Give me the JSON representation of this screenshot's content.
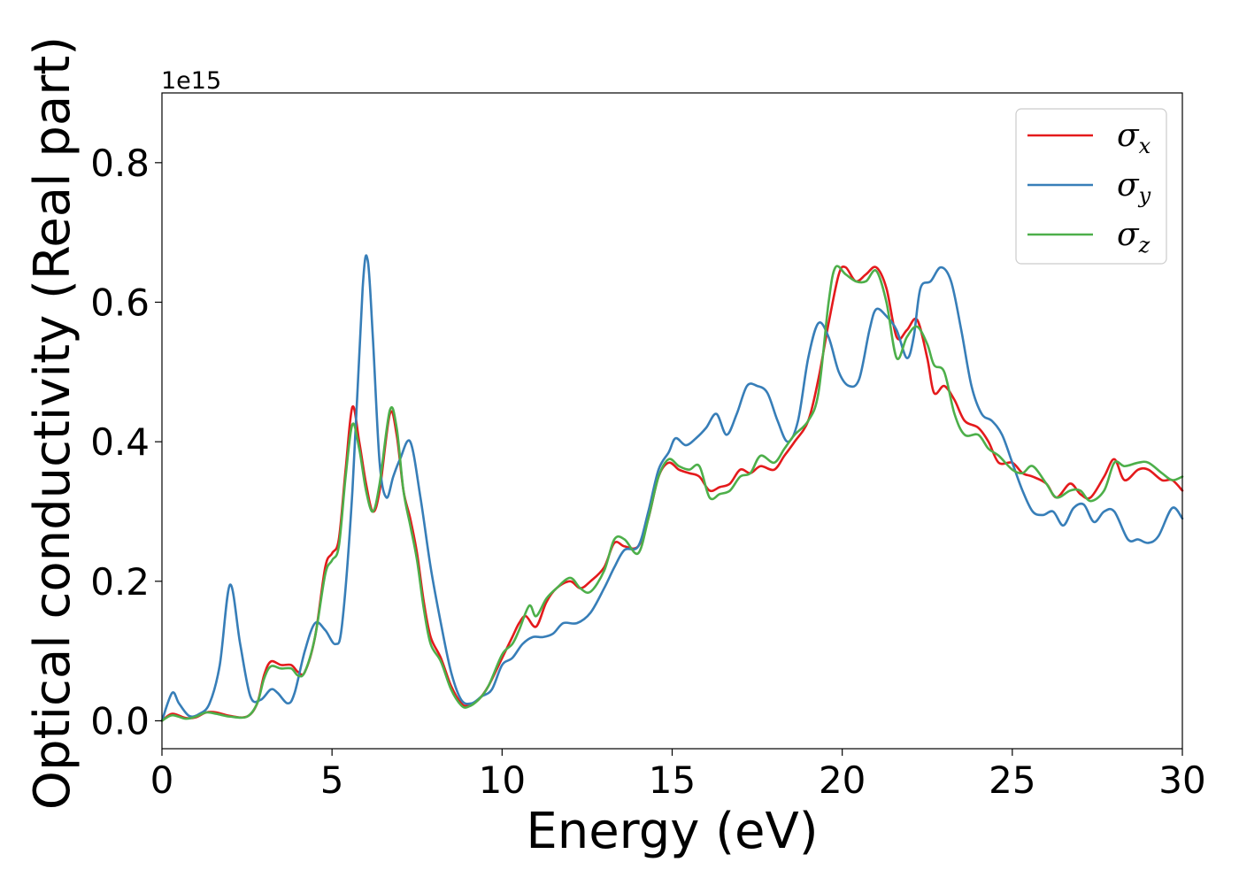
{
  "chart_data": {
    "type": "line",
    "xlabel": "Energy (eV)",
    "ylabel": "Optical conductivity (Real part)",
    "offset_text": "1e15",
    "xlim": [
      0,
      30
    ],
    "ylim": [
      -0.04,
      0.9
    ],
    "xticks": [
      0,
      5,
      10,
      15,
      20,
      25,
      30
    ],
    "xtick_labels": [
      "0",
      "5",
      "10",
      "15",
      "20",
      "25",
      "30"
    ],
    "yticks": [
      0.0,
      0.2,
      0.4,
      0.6,
      0.8
    ],
    "ytick_labels": [
      "0.0",
      "0.2",
      "0.4",
      "0.6",
      "0.8"
    ],
    "grid": false,
    "legend_position": "top-right",
    "series": [
      {
        "name": "σx",
        "legend_symbol": "σ",
        "legend_sub": "x",
        "color": "#e41a1c",
        "points": [
          [
            0,
            0.0
          ],
          [
            0.3,
            0.01
          ],
          [
            0.7,
            0.004
          ],
          [
            1.0,
            0.005
          ],
          [
            1.3,
            0.012
          ],
          [
            1.6,
            0.012
          ],
          [
            2.0,
            0.007
          ],
          [
            2.5,
            0.006
          ],
          [
            2.8,
            0.025
          ],
          [
            3.0,
            0.065
          ],
          [
            3.2,
            0.085
          ],
          [
            3.5,
            0.08
          ],
          [
            3.8,
            0.08
          ],
          [
            4.0,
            0.07
          ],
          [
            4.2,
            0.07
          ],
          [
            4.5,
            0.12
          ],
          [
            4.8,
            0.22
          ],
          [
            5.0,
            0.24
          ],
          [
            5.2,
            0.26
          ],
          [
            5.4,
            0.36
          ],
          [
            5.6,
            0.45
          ],
          [
            5.8,
            0.4
          ],
          [
            6.0,
            0.34
          ],
          [
            6.2,
            0.3
          ],
          [
            6.4,
            0.33
          ],
          [
            6.7,
            0.44
          ],
          [
            6.9,
            0.41
          ],
          [
            7.1,
            0.33
          ],
          [
            7.3,
            0.29
          ],
          [
            7.5,
            0.24
          ],
          [
            7.7,
            0.17
          ],
          [
            7.9,
            0.12
          ],
          [
            8.2,
            0.09
          ],
          [
            8.5,
            0.05
          ],
          [
            8.8,
            0.025
          ],
          [
            9.0,
            0.022
          ],
          [
            9.3,
            0.03
          ],
          [
            9.6,
            0.05
          ],
          [
            10.0,
            0.09
          ],
          [
            10.3,
            0.12
          ],
          [
            10.5,
            0.14
          ],
          [
            10.7,
            0.15
          ],
          [
            11.0,
            0.135
          ],
          [
            11.3,
            0.17
          ],
          [
            11.6,
            0.19
          ],
          [
            12.0,
            0.2
          ],
          [
            12.3,
            0.19
          ],
          [
            12.6,
            0.2
          ],
          [
            13.0,
            0.22
          ],
          [
            13.3,
            0.255
          ],
          [
            13.6,
            0.25
          ],
          [
            14.0,
            0.25
          ],
          [
            14.3,
            0.29
          ],
          [
            14.6,
            0.35
          ],
          [
            14.9,
            0.37
          ],
          [
            15.2,
            0.36
          ],
          [
            15.5,
            0.355
          ],
          [
            15.8,
            0.35
          ],
          [
            16.1,
            0.33
          ],
          [
            16.4,
            0.335
          ],
          [
            16.7,
            0.34
          ],
          [
            17.0,
            0.36
          ],
          [
            17.3,
            0.355
          ],
          [
            17.6,
            0.365
          ],
          [
            18.0,
            0.36
          ],
          [
            18.3,
            0.38
          ],
          [
            18.6,
            0.4
          ],
          [
            19.0,
            0.43
          ],
          [
            19.3,
            0.49
          ],
          [
            19.6,
            0.57
          ],
          [
            19.9,
            0.64
          ],
          [
            20.1,
            0.65
          ],
          [
            20.4,
            0.63
          ],
          [
            20.7,
            0.64
          ],
          [
            21.0,
            0.65
          ],
          [
            21.3,
            0.62
          ],
          [
            21.6,
            0.55
          ],
          [
            21.9,
            0.56
          ],
          [
            22.2,
            0.575
          ],
          [
            22.5,
            0.52
          ],
          [
            22.7,
            0.47
          ],
          [
            23.0,
            0.48
          ],
          [
            23.3,
            0.46
          ],
          [
            23.6,
            0.43
          ],
          [
            24.0,
            0.42
          ],
          [
            24.3,
            0.4
          ],
          [
            24.6,
            0.37
          ],
          [
            25.0,
            0.37
          ],
          [
            25.3,
            0.355
          ],
          [
            25.6,
            0.35
          ],
          [
            26.0,
            0.34
          ],
          [
            26.3,
            0.32
          ],
          [
            26.7,
            0.34
          ],
          [
            27.0,
            0.325
          ],
          [
            27.3,
            0.32
          ],
          [
            27.7,
            0.35
          ],
          [
            28.0,
            0.375
          ],
          [
            28.3,
            0.345
          ],
          [
            28.7,
            0.36
          ],
          [
            29.0,
            0.36
          ],
          [
            29.4,
            0.345
          ],
          [
            29.7,
            0.345
          ],
          [
            30.0,
            0.33
          ]
        ]
      },
      {
        "name": "σy",
        "legend_symbol": "σ",
        "legend_sub": "y",
        "color": "#377eb8",
        "points": [
          [
            0,
            0.0
          ],
          [
            0.3,
            0.04
          ],
          [
            0.5,
            0.025
          ],
          [
            0.8,
            0.007
          ],
          [
            1.1,
            0.01
          ],
          [
            1.4,
            0.025
          ],
          [
            1.7,
            0.08
          ],
          [
            2.0,
            0.195
          ],
          [
            2.3,
            0.11
          ],
          [
            2.6,
            0.035
          ],
          [
            2.9,
            0.03
          ],
          [
            3.2,
            0.045
          ],
          [
            3.4,
            0.04
          ],
          [
            3.7,
            0.025
          ],
          [
            3.9,
            0.04
          ],
          [
            4.2,
            0.1
          ],
          [
            4.5,
            0.14
          ],
          [
            4.8,
            0.13
          ],
          [
            5.1,
            0.11
          ],
          [
            5.3,
            0.14
          ],
          [
            5.6,
            0.33
          ],
          [
            5.9,
            0.62
          ],
          [
            6.05,
            0.66
          ],
          [
            6.2,
            0.55
          ],
          [
            6.4,
            0.37
          ],
          [
            6.6,
            0.32
          ],
          [
            6.8,
            0.35
          ],
          [
            7.0,
            0.375
          ],
          [
            7.3,
            0.4
          ],
          [
            7.6,
            0.32
          ],
          [
            7.9,
            0.22
          ],
          [
            8.2,
            0.14
          ],
          [
            8.5,
            0.07
          ],
          [
            8.8,
            0.03
          ],
          [
            9.1,
            0.025
          ],
          [
            9.4,
            0.035
          ],
          [
            9.7,
            0.045
          ],
          [
            10.0,
            0.08
          ],
          [
            10.3,
            0.09
          ],
          [
            10.6,
            0.11
          ],
          [
            10.9,
            0.12
          ],
          [
            11.2,
            0.12
          ],
          [
            11.5,
            0.125
          ],
          [
            11.8,
            0.14
          ],
          [
            12.2,
            0.14
          ],
          [
            12.6,
            0.155
          ],
          [
            13.0,
            0.19
          ],
          [
            13.3,
            0.22
          ],
          [
            13.6,
            0.245
          ],
          [
            14.0,
            0.25
          ],
          [
            14.3,
            0.3
          ],
          [
            14.6,
            0.36
          ],
          [
            14.9,
            0.385
          ],
          [
            15.1,
            0.405
          ],
          [
            15.4,
            0.395
          ],
          [
            15.7,
            0.405
          ],
          [
            16.0,
            0.42
          ],
          [
            16.3,
            0.44
          ],
          [
            16.6,
            0.41
          ],
          [
            16.9,
            0.44
          ],
          [
            17.2,
            0.48
          ],
          [
            17.5,
            0.48
          ],
          [
            17.8,
            0.47
          ],
          [
            18.1,
            0.43
          ],
          [
            18.4,
            0.4
          ],
          [
            18.7,
            0.43
          ],
          [
            19.0,
            0.52
          ],
          [
            19.3,
            0.57
          ],
          [
            19.6,
            0.55
          ],
          [
            19.9,
            0.5
          ],
          [
            20.2,
            0.48
          ],
          [
            20.5,
            0.49
          ],
          [
            20.8,
            0.56
          ],
          [
            21.0,
            0.59
          ],
          [
            21.3,
            0.58
          ],
          [
            21.6,
            0.56
          ],
          [
            21.9,
            0.52
          ],
          [
            22.1,
            0.55
          ],
          [
            22.3,
            0.62
          ],
          [
            22.6,
            0.63
          ],
          [
            22.9,
            0.65
          ],
          [
            23.2,
            0.63
          ],
          [
            23.5,
            0.56
          ],
          [
            23.8,
            0.48
          ],
          [
            24.1,
            0.44
          ],
          [
            24.4,
            0.43
          ],
          [
            24.7,
            0.41
          ],
          [
            25.0,
            0.37
          ],
          [
            25.3,
            0.33
          ],
          [
            25.6,
            0.3
          ],
          [
            25.9,
            0.295
          ],
          [
            26.2,
            0.3
          ],
          [
            26.5,
            0.28
          ],
          [
            26.8,
            0.305
          ],
          [
            27.1,
            0.31
          ],
          [
            27.4,
            0.285
          ],
          [
            27.7,
            0.3
          ],
          [
            28.0,
            0.3
          ],
          [
            28.4,
            0.26
          ],
          [
            28.7,
            0.26
          ],
          [
            29.0,
            0.255
          ],
          [
            29.3,
            0.265
          ],
          [
            29.7,
            0.305
          ],
          [
            30.0,
            0.29
          ]
        ]
      },
      {
        "name": "σz",
        "legend_symbol": "σ",
        "legend_sub": "z",
        "color": "#4daf4a",
        "points": [
          [
            0,
            0.0
          ],
          [
            0.3,
            0.008
          ],
          [
            0.7,
            0.003
          ],
          [
            1.0,
            0.006
          ],
          [
            1.3,
            0.012
          ],
          [
            1.6,
            0.01
          ],
          [
            2.0,
            0.006
          ],
          [
            2.5,
            0.006
          ],
          [
            2.8,
            0.025
          ],
          [
            3.0,
            0.06
          ],
          [
            3.2,
            0.078
          ],
          [
            3.5,
            0.075
          ],
          [
            3.8,
            0.075
          ],
          [
            4.0,
            0.065
          ],
          [
            4.2,
            0.07
          ],
          [
            4.5,
            0.12
          ],
          [
            4.8,
            0.21
          ],
          [
            5.0,
            0.23
          ],
          [
            5.2,
            0.25
          ],
          [
            5.4,
            0.35
          ],
          [
            5.6,
            0.425
          ],
          [
            5.8,
            0.39
          ],
          [
            6.0,
            0.33
          ],
          [
            6.2,
            0.3
          ],
          [
            6.4,
            0.34
          ],
          [
            6.7,
            0.445
          ],
          [
            6.9,
            0.42
          ],
          [
            7.1,
            0.33
          ],
          [
            7.3,
            0.28
          ],
          [
            7.5,
            0.23
          ],
          [
            7.7,
            0.16
          ],
          [
            7.9,
            0.11
          ],
          [
            8.2,
            0.085
          ],
          [
            8.5,
            0.045
          ],
          [
            8.8,
            0.022
          ],
          [
            9.0,
            0.02
          ],
          [
            9.3,
            0.03
          ],
          [
            9.6,
            0.05
          ],
          [
            10.0,
            0.095
          ],
          [
            10.3,
            0.11
          ],
          [
            10.5,
            0.13
          ],
          [
            10.8,
            0.165
          ],
          [
            11.0,
            0.15
          ],
          [
            11.3,
            0.175
          ],
          [
            11.6,
            0.19
          ],
          [
            12.0,
            0.205
          ],
          [
            12.3,
            0.19
          ],
          [
            12.6,
            0.185
          ],
          [
            13.0,
            0.215
          ],
          [
            13.3,
            0.26
          ],
          [
            13.6,
            0.26
          ],
          [
            14.0,
            0.24
          ],
          [
            14.3,
            0.29
          ],
          [
            14.6,
            0.35
          ],
          [
            14.9,
            0.375
          ],
          [
            15.2,
            0.365
          ],
          [
            15.5,
            0.36
          ],
          [
            15.8,
            0.365
          ],
          [
            16.1,
            0.32
          ],
          [
            16.4,
            0.325
          ],
          [
            16.7,
            0.33
          ],
          [
            17.0,
            0.35
          ],
          [
            17.3,
            0.355
          ],
          [
            17.6,
            0.38
          ],
          [
            18.0,
            0.37
          ],
          [
            18.3,
            0.39
          ],
          [
            18.6,
            0.41
          ],
          [
            19.0,
            0.43
          ],
          [
            19.3,
            0.47
          ],
          [
            19.6,
            0.6
          ],
          [
            19.8,
            0.65
          ],
          [
            20.1,
            0.64
          ],
          [
            20.4,
            0.63
          ],
          [
            20.7,
            0.63
          ],
          [
            21.0,
            0.645
          ],
          [
            21.3,
            0.6
          ],
          [
            21.6,
            0.52
          ],
          [
            21.9,
            0.55
          ],
          [
            22.2,
            0.565
          ],
          [
            22.5,
            0.54
          ],
          [
            22.7,
            0.51
          ],
          [
            23.0,
            0.5
          ],
          [
            23.3,
            0.44
          ],
          [
            23.6,
            0.41
          ],
          [
            24.0,
            0.41
          ],
          [
            24.3,
            0.39
          ],
          [
            24.6,
            0.38
          ],
          [
            25.0,
            0.36
          ],
          [
            25.3,
            0.355
          ],
          [
            25.6,
            0.365
          ],
          [
            26.0,
            0.34
          ],
          [
            26.3,
            0.32
          ],
          [
            26.7,
            0.33
          ],
          [
            27.0,
            0.33
          ],
          [
            27.3,
            0.315
          ],
          [
            27.7,
            0.33
          ],
          [
            28.0,
            0.37
          ],
          [
            28.3,
            0.365
          ],
          [
            28.7,
            0.37
          ],
          [
            29.0,
            0.37
          ],
          [
            29.4,
            0.355
          ],
          [
            29.7,
            0.345
          ],
          [
            30.0,
            0.35
          ]
        ]
      }
    ]
  }
}
